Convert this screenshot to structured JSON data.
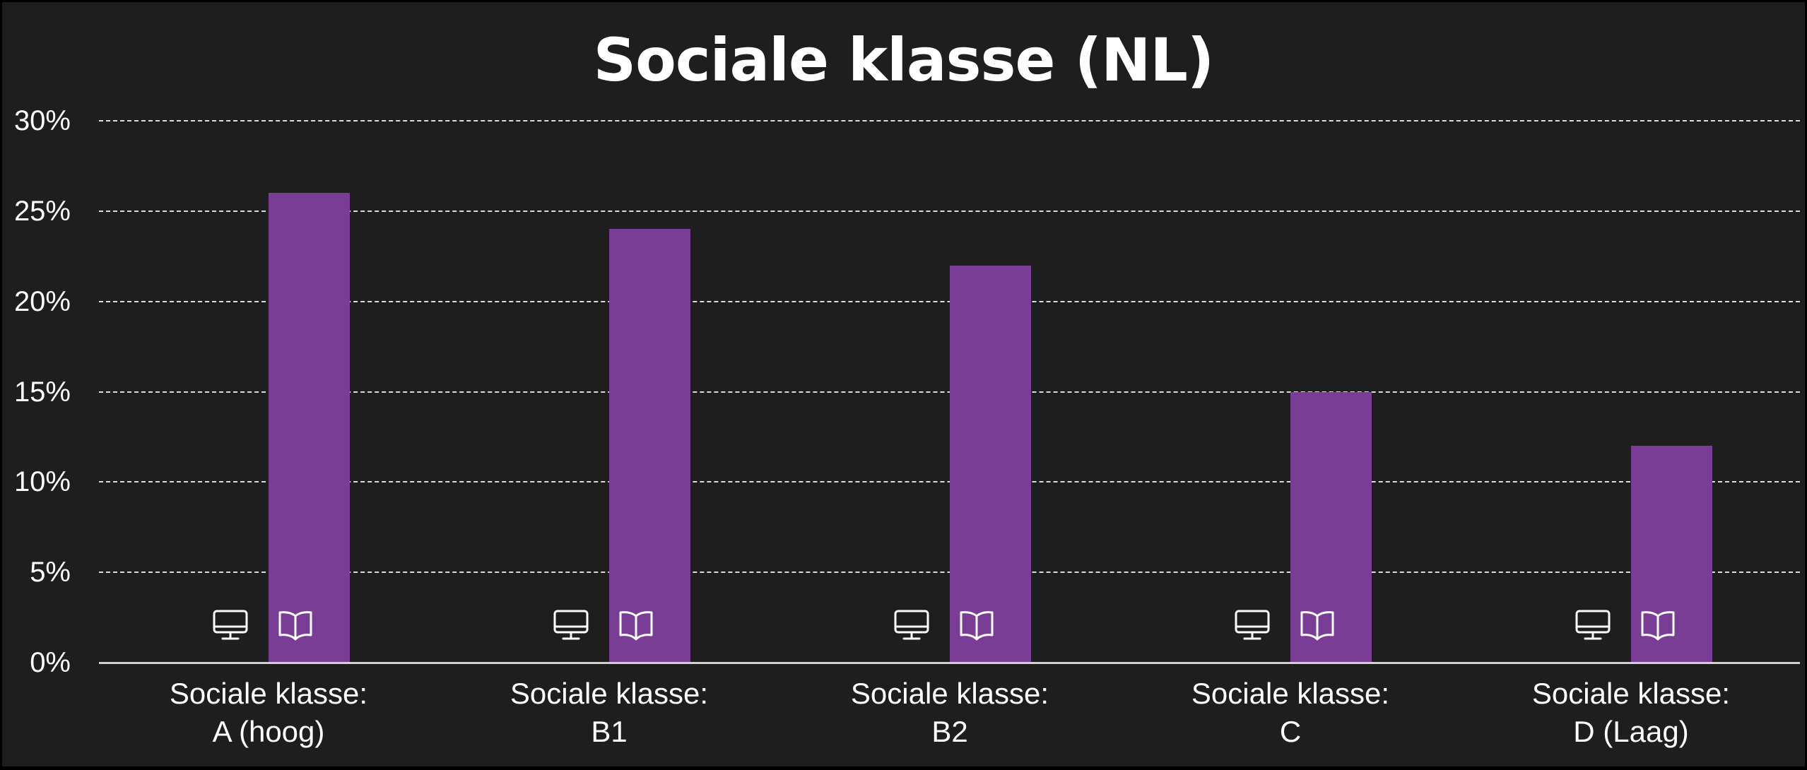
{
  "title": "Sociale klasse (NL)",
  "colors": {
    "background": "#1e1e1e",
    "bar": "#7a3d96",
    "text": "#ffffff",
    "grid": "#dcdcdc"
  },
  "y_axis": {
    "ticks": [
      "0%",
      "5%",
      "10%",
      "15%",
      "20%",
      "25%",
      "30%"
    ]
  },
  "categories": [
    {
      "line1": "Sociale klasse:",
      "line2": "A (hoog)",
      "value": 26,
      "icons": [
        "monitor-icon",
        "book-icon"
      ]
    },
    {
      "line1": "Sociale klasse:",
      "line2": "B1",
      "value": 24,
      "icons": [
        "monitor-icon",
        "book-icon"
      ]
    },
    {
      "line1": "Sociale klasse:",
      "line2": "B2",
      "value": 22,
      "icons": [
        "monitor-icon",
        "book-icon"
      ]
    },
    {
      "line1": "Sociale klasse:",
      "line2": "C",
      "value": 15,
      "icons": [
        "monitor-icon",
        "book-icon"
      ]
    },
    {
      "line1": "Sociale klasse:",
      "line2": "D (Laag)",
      "value": 12,
      "icons": [
        "monitor-icon",
        "book-icon"
      ]
    }
  ],
  "chart_data": {
    "type": "bar",
    "title": "Sociale klasse (NL)",
    "categories": [
      "Sociale klasse: A (hoog)",
      "Sociale klasse: B1",
      "Sociale klasse: B2",
      "Sociale klasse: C",
      "Sociale klasse: D (Laag)"
    ],
    "values": [
      26,
      24,
      22,
      15,
      12
    ],
    "unit": "%",
    "xlabel": "",
    "ylabel": "",
    "ylim": [
      0,
      30
    ],
    "yticks": [
      0,
      5,
      10,
      15,
      20,
      25,
      30
    ],
    "grid": "horizontal dashed",
    "legend": "none",
    "bar_color": "#7a3d96"
  }
}
